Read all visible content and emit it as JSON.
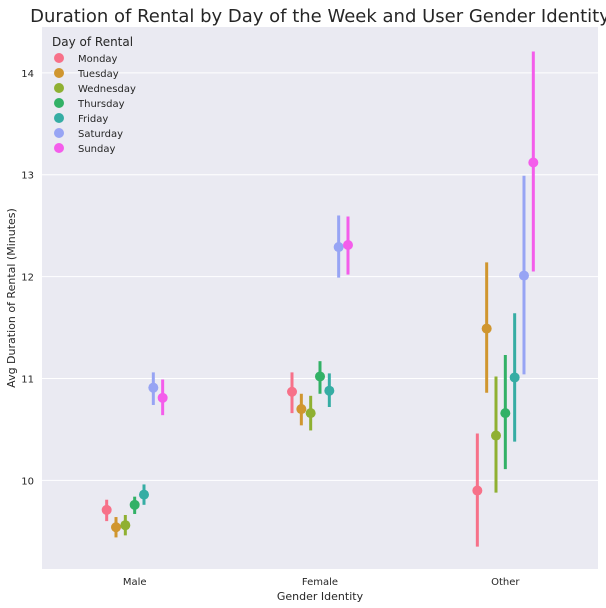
{
  "chart_data": {
    "type": "point",
    "title": "Duration of Rental by Day of the Week and User Gender Identity",
    "xlabel": "Gender Identity",
    "ylabel": "Avg Duration of Rental (Minutes)",
    "categories": [
      "Male",
      "Female",
      "Other"
    ],
    "ylim": [
      9.13,
      14.45
    ],
    "yticks": [
      "10",
      "11",
      "12",
      "13",
      "14"
    ],
    "grid": true,
    "legend": {
      "title": "Day of Rental",
      "placement": "top-left"
    },
    "series": [
      {
        "name": "Monday",
        "color": "#f77189",
        "values": [
          9.71,
          10.87,
          9.9
        ],
        "ci_low": [
          9.6,
          10.66,
          9.35
        ],
        "ci_high": [
          9.81,
          11.06,
          10.46
        ]
      },
      {
        "name": "Tuesday",
        "color": "#d0962f",
        "values": [
          9.54,
          10.7,
          11.49
        ],
        "ci_low": [
          9.44,
          10.54,
          10.86
        ],
        "ci_high": [
          9.64,
          10.85,
          12.14
        ]
      },
      {
        "name": "Wednesday",
        "color": "#8fb032",
        "values": [
          9.56,
          10.66,
          10.44
        ],
        "ci_low": [
          9.46,
          10.49,
          9.88
        ],
        "ci_high": [
          9.66,
          10.83,
          11.02
        ]
      },
      {
        "name": "Thursday",
        "color": "#32b166",
        "values": [
          9.76,
          11.02,
          10.66
        ],
        "ci_low": [
          9.67,
          10.85,
          10.11
        ],
        "ci_high": [
          9.84,
          11.17,
          11.23
        ]
      },
      {
        "name": "Friday",
        "color": "#36ada4",
        "values": [
          9.86,
          10.88,
          11.01
        ],
        "ci_low": [
          9.76,
          10.72,
          10.38
        ],
        "ci_high": [
          9.96,
          11.05,
          11.64
        ]
      },
      {
        "name": "Saturday",
        "color": "#97a4f4",
        "values": [
          10.91,
          12.29,
          12.01
        ],
        "ci_low": [
          10.74,
          11.99,
          11.04
        ],
        "ci_high": [
          11.06,
          12.6,
          12.99
        ]
      },
      {
        "name": "Sunday",
        "color": "#f45deb",
        "values": [
          10.81,
          12.31,
          13.12
        ],
        "ci_low": [
          10.64,
          12.02,
          12.05
        ],
        "ci_high": [
          10.99,
          12.59,
          14.21
        ]
      }
    ]
  }
}
